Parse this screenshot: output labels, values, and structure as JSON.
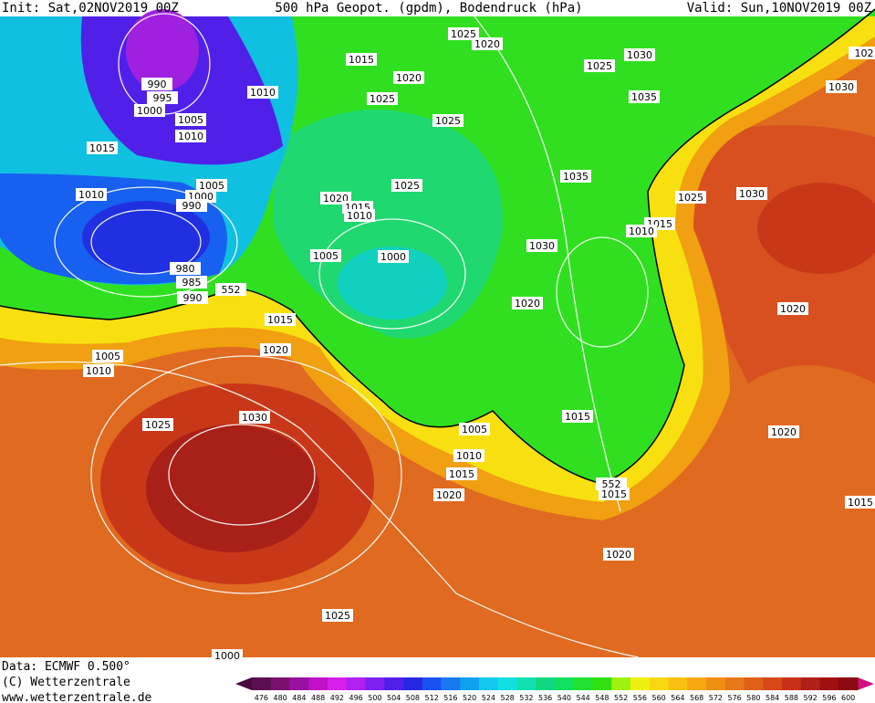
{
  "header": {
    "init": "Init: Sat,02NOV2019 00Z",
    "title": "500 hPa Geopot. (gpdm), Bodendruck (hPa)",
    "valid": "Valid: Sun,10NOV2019 00Z"
  },
  "pressure_labels": [
    "1025",
    "1020",
    "1015",
    "1020",
    "1025",
    "1030",
    "102",
    "1030",
    "990",
    "995",
    "1000",
    "1010",
    "1005",
    "1010",
    "1025",
    "1025",
    "1035",
    "1015",
    "1035",
    "1025",
    "1005",
    "1000",
    "990",
    "1010",
    "1020",
    "1015",
    "1010",
    "1025",
    "1030",
    "1015",
    "1010",
    "1030",
    "1005",
    "1000",
    "980",
    "985",
    "990",
    "552",
    "1020",
    "1015",
    "1020",
    "1005",
    "1010",
    "1020",
    "1025",
    "1030",
    "1015",
    "1005",
    "1010",
    "1015",
    "1020",
    "552",
    "1015",
    "1015",
    "1020",
    "1020",
    "1025",
    "1000"
  ],
  "footer": {
    "data": "Data: ECMWF  0.500°",
    "copyright": "(C) Wetterzentrale",
    "url": "www.wetterzentrale.de"
  },
  "colorbar": {
    "levels": [
      476,
      480,
      484,
      488,
      492,
      496,
      500,
      504,
      508,
      512,
      516,
      520,
      524,
      528,
      532,
      536,
      540,
      544,
      548,
      552,
      556,
      560,
      564,
      568,
      572,
      576,
      580,
      584,
      588,
      592,
      596,
      600
    ],
    "colors": [
      "#5a1050",
      "#7a1070",
      "#9a10a0",
      "#c010c8",
      "#d820e8",
      "#b020f0",
      "#8020f0",
      "#5020e8",
      "#2828e0",
      "#1850f0",
      "#1878f0",
      "#10a0f0",
      "#10c8f0",
      "#10e0e0",
      "#10e0b0",
      "#10d880",
      "#10e060",
      "#20e030",
      "#30e010",
      "#a0f010",
      "#f0f010",
      "#f8d810",
      "#f8c010",
      "#f8a810",
      "#f09010",
      "#e87818",
      "#e06018",
      "#d84818",
      "#c83018",
      "#b02018",
      "#a01010",
      "#8a0810"
    ]
  }
}
